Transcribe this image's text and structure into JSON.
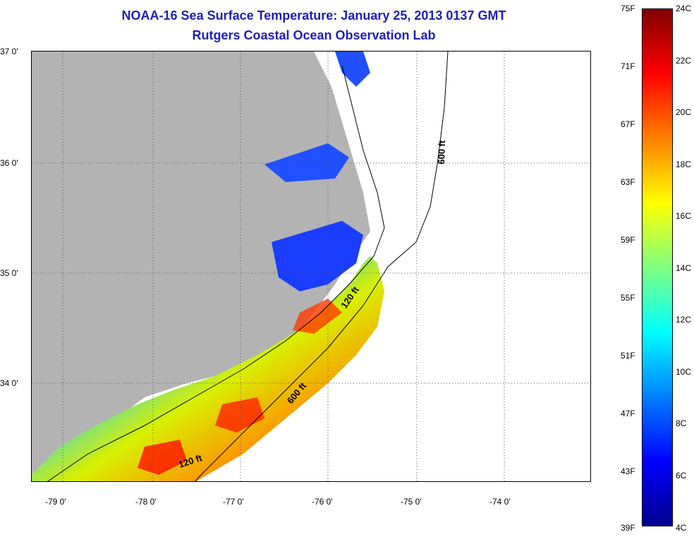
{
  "title": "NOAA-16 Sea Surface Temperature:  January 25, 2013 0137 GMT",
  "subtitle": "Rutgers Coastal Ocean Observation Lab",
  "colors": {
    "title": "#1f1fb4",
    "land": "#b3b3b3",
    "colormap": [
      "#00008f",
      "#0000ff",
      "#0080ff",
      "#00ffff",
      "#80ff80",
      "#ffff00",
      "#ff8000",
      "#ff0000",
      "#800000"
    ]
  },
  "map": {
    "lat_labels": [
      "37 0'",
      "36 0'",
      "35 0'",
      "34 0'"
    ],
    "lon_labels": [
      "-79 0'",
      "-78 0'",
      "-77 0'",
      "-76 0'",
      "-75 0'",
      "-74 0'"
    ],
    "contour_labels": [
      "600 ft",
      "120 ft",
      "600 ft",
      "120 ft"
    ]
  },
  "colorbar": {
    "fahrenheit_labels": [
      "75F",
      "71F",
      "67F",
      "63F",
      "59F",
      "55F",
      "51F",
      "47F",
      "43F",
      "39F"
    ],
    "celsius_labels": [
      "24C",
      "22C",
      "20C",
      "18C",
      "16C",
      "14C",
      "12C",
      "10C",
      "8C",
      "6C",
      "4C"
    ]
  }
}
